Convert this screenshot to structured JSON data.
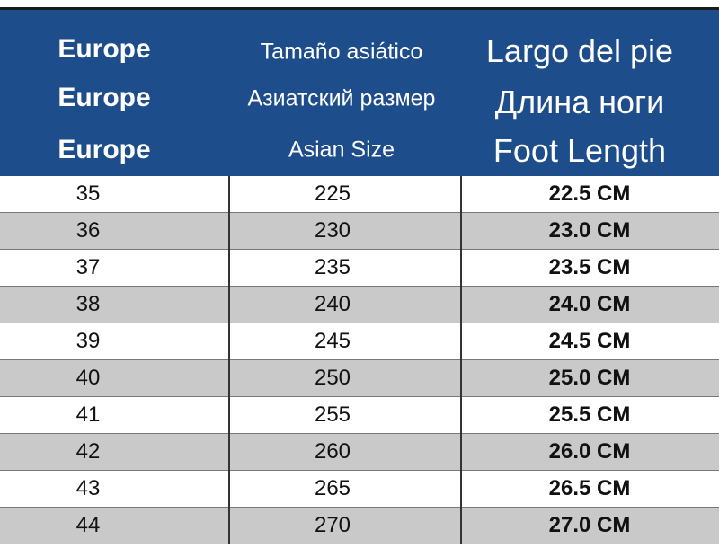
{
  "header": {
    "columns": [
      [
        "Europe",
        "Europe",
        "Europe"
      ],
      [
        "Tamaño asiático",
        "Азиатский размер",
        "Asian Size"
      ],
      [
        "Largo del pie",
        "Длина ноги",
        "Foot Length"
      ]
    ]
  },
  "table": {
    "rows": [
      [
        35,
        225,
        "22.5 CM"
      ],
      [
        36,
        230,
        "23.0 CM"
      ],
      [
        37,
        235,
        "23.5 CM"
      ],
      [
        38,
        240,
        "24.0 CM"
      ],
      [
        39,
        245,
        "24.5 CM"
      ],
      [
        40,
        250,
        "25.0 CM"
      ],
      [
        41,
        255,
        "25.5 CM"
      ],
      [
        42,
        260,
        "26.0 CM"
      ],
      [
        43,
        265,
        "26.5 CM"
      ],
      [
        44,
        270,
        "27.0 CM"
      ]
    ]
  }
}
